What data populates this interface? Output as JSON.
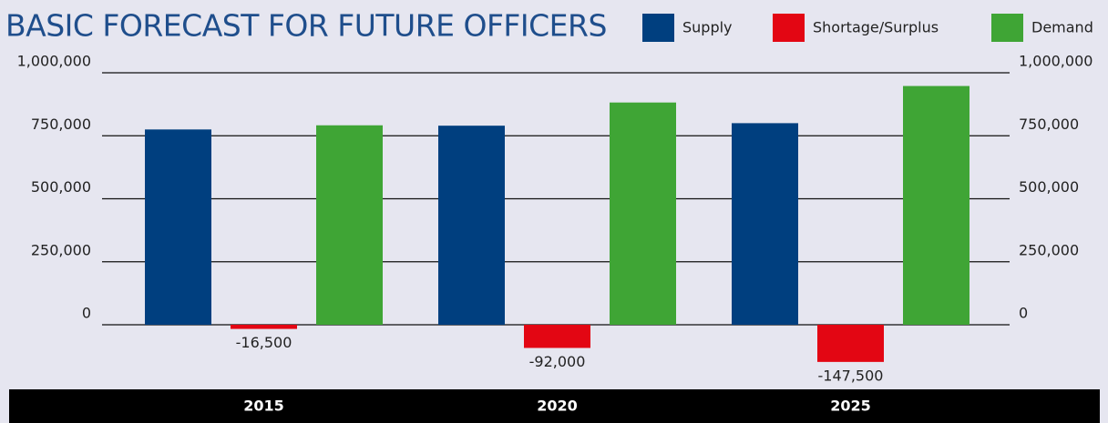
{
  "chart_data": {
    "type": "bar",
    "title": "BASIC FORECAST FOR FUTURE OFFICERS",
    "categories": [
      "2015",
      "2020",
      "2025"
    ],
    "series": [
      {
        "name": "Supply",
        "color": "#003f7f",
        "values": [
          775000,
          790000,
          800000
        ]
      },
      {
        "name": "Shortage/Surplus",
        "color": "#e30613",
        "values": [
          -16500,
          -92000,
          -147500
        ],
        "value_labels": [
          "-16,500",
          "-92,000",
          "-147,500"
        ]
      },
      {
        "name": "Demand",
        "color": "#3fa535",
        "values": [
          791500,
          882000,
          947500
        ]
      }
    ],
    "ylim": [
      0,
      1000000
    ],
    "yticks": [
      0,
      {
        "value": 250000,
        "label": "250,000"
      },
      {
        "value": 500000,
        "label": "500,000"
      },
      {
        "value": 750000,
        "label": "750,000"
      },
      {
        "value": 1000000,
        "label": "1,000,000"
      }
    ],
    "grid": true
  }
}
